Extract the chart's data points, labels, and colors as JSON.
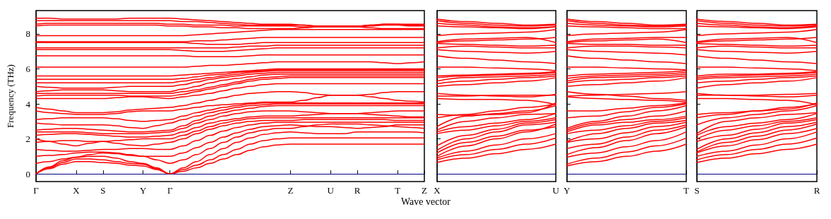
{
  "chart_data": [
    {
      "type": "line",
      "xlabel": "Wave vector",
      "ylabel": "Frequency (THz)",
      "categories": [
        "Γ",
        null,
        null,
        "X",
        null,
        "S",
        null,
        null,
        "Y",
        null,
        "Γ",
        null,
        null,
        null,
        null,
        null,
        null,
        null,
        null,
        "Z",
        null,
        null,
        "U",
        null,
        "R",
        null,
        null,
        "T",
        null,
        "Z"
      ],
      "ylim": [
        -0.44,
        9.33
      ],
      "yticks": [
        0,
        2,
        4,
        6,
        8
      ],
      "grid": false,
      "marker": "none",
      "ref_lines": [
        {
          "axis": "y",
          "value": 0,
          "color": "#0000ff",
          "line_style": "dotted"
        }
      ],
      "series": [
        {
          "color": "#ff0000",
          "values": [
            0,
            0.3,
            0.55,
            0.7,
            0.7,
            0.65,
            0.6,
            0.5,
            0.45,
            0.25,
            0,
            0.15,
            0.35,
            0.6,
            0.85,
            1.1,
            1.35,
            1.55,
            1.65,
            1.7,
            1.7,
            1.7,
            1.7,
            1.7,
            1.7,
            1.7,
            1.7,
            1.7,
            1.7,
            1.7
          ]
        },
        {
          "color": "#ff0000",
          "values": [
            0,
            0.35,
            0.65,
            0.85,
            0.85,
            0.8,
            0.7,
            0.6,
            0.55,
            0.3,
            0,
            0.25,
            0.5,
            0.8,
            1.1,
            1.4,
            1.7,
            1.9,
            2.0,
            2.05,
            2.05,
            2.05,
            2.05,
            2.05,
            2.05,
            2.05,
            2.05,
            2.05,
            2.05,
            2.05
          ]
        },
        {
          "color": "#ff0000",
          "values": [
            0,
            0.4,
            0.75,
            0.95,
            1.0,
            1.0,
            0.9,
            0.7,
            0.6,
            0.35,
            0,
            0.35,
            0.7,
            1.1,
            1.45,
            1.8,
            2.05,
            2.25,
            2.35,
            2.4,
            2.35,
            2.3,
            2.3,
            2.3,
            2.4,
            2.4,
            2.4,
            2.4,
            2.4,
            2.35
          ]
        },
        {
          "color": "#ff0000",
          "values": [
            0.6,
            0.7,
            0.85,
            0.95,
            1.1,
            1.2,
            1.15,
            1.05,
            1.0,
            0.8,
            0.6,
            0.8,
            1.1,
            1.45,
            1.8,
            2.1,
            2.35,
            2.5,
            2.6,
            2.6,
            2.7,
            2.8,
            2.85,
            2.85,
            2.85,
            2.8,
            2.75,
            2.7,
            2.65,
            2.6
          ]
        },
        {
          "color": "#ff0000",
          "values": [
            1.0,
            1.05,
            1.1,
            1.2,
            1.25,
            1.25,
            1.2,
            1.1,
            1.0,
            1.0,
            1.0,
            1.2,
            1.5,
            1.8,
            2.1,
            2.35,
            2.55,
            2.7,
            2.75,
            2.8,
            2.75,
            2.7,
            2.7,
            2.65,
            2.6,
            2.65,
            2.7,
            2.8,
            2.8,
            2.8
          ]
        },
        {
          "color": "#ff0000",
          "values": [
            1.4,
            1.35,
            1.3,
            1.3,
            1.35,
            1.4,
            1.4,
            1.45,
            1.45,
            1.4,
            1.4,
            1.6,
            1.9,
            2.2,
            2.45,
            2.65,
            2.8,
            2.9,
            2.95,
            2.95,
            2.95,
            2.95,
            2.95,
            2.95,
            2.95,
            2.95,
            2.95,
            2.95,
            2.95,
            2.95
          ]
        },
        {
          "color": "#ff0000",
          "values": [
            1.8,
            1.85,
            1.9,
            1.9,
            1.85,
            1.85,
            1.75,
            1.65,
            1.6,
            1.7,
            1.8,
            2.0,
            2.3,
            2.55,
            2.75,
            2.9,
            3.0,
            3.05,
            3.05,
            3.05,
            3.1,
            3.1,
            3.1,
            3.1,
            3.1,
            3.1,
            3.1,
            3.05,
            3.05,
            3.05
          ]
        },
        {
          "color": "#ff0000",
          "values": [
            2.0,
            1.85,
            1.7,
            1.6,
            1.75,
            1.85,
            1.9,
            1.95,
            2.0,
            2.0,
            2.0,
            2.2,
            2.45,
            2.7,
            2.9,
            3.05,
            3.15,
            3.2,
            3.2,
            3.2,
            3.2,
            3.2,
            3.2,
            3.2,
            3.2,
            3.2,
            3.2,
            3.2,
            3.2,
            3.2
          ]
        },
        {
          "color": "#ff0000",
          "values": [
            2.2,
            2.25,
            2.3,
            2.3,
            2.25,
            2.2,
            2.15,
            2.1,
            2.1,
            2.15,
            2.2,
            2.4,
            2.65,
            2.9,
            3.05,
            3.15,
            3.25,
            3.3,
            3.3,
            3.3,
            3.35,
            3.4,
            3.45,
            3.45,
            3.45,
            3.4,
            3.35,
            3.3,
            3.25,
            3.25
          ]
        },
        {
          "color": "#ff0000",
          "values": [
            2.4,
            2.4,
            2.4,
            2.4,
            2.35,
            2.3,
            2.3,
            2.3,
            2.3,
            2.35,
            2.4,
            2.6,
            2.9,
            3.1,
            3.3,
            3.45,
            3.55,
            3.6,
            3.6,
            3.6,
            3.55,
            3.5,
            3.45,
            3.45,
            3.45,
            3.5,
            3.55,
            3.6,
            3.6,
            3.6
          ]
        },
        {
          "color": "#ff0000",
          "values": [
            2.5,
            2.55,
            2.6,
            2.6,
            2.55,
            2.5,
            2.45,
            2.4,
            2.4,
            2.45,
            2.5,
            2.75,
            3.05,
            3.3,
            3.5,
            3.65,
            3.75,
            3.85,
            3.9,
            3.9,
            3.9,
            3.9,
            3.9,
            3.9,
            3.9,
            3.9,
            3.9,
            3.9,
            3.9,
            3.9
          ]
        },
        {
          "color": "#ff0000",
          "values": [
            2.9,
            2.85,
            2.8,
            2.8,
            2.8,
            2.8,
            2.75,
            2.65,
            2.6,
            2.75,
            2.9,
            3.1,
            3.3,
            3.5,
            3.65,
            3.8,
            3.9,
            3.95,
            4.0,
            4.0,
            4.0,
            4.0,
            4.0,
            4.0,
            4.0,
            4.0,
            4.0,
            4.0,
            4.0,
            4.0
          ]
        },
        {
          "color": "#ff0000",
          "values": [
            3.1,
            3.15,
            3.2,
            3.2,
            3.2,
            3.2,
            3.15,
            3.05,
            3.0,
            3.05,
            3.1,
            3.3,
            3.5,
            3.65,
            3.8,
            3.9,
            4.0,
            4.05,
            4.05,
            4.05,
            4.05,
            4.05,
            4.05,
            4.05,
            4.05,
            4.05,
            4.05,
            4.05,
            4.05,
            4.05
          ]
        },
        {
          "color": "#ff0000",
          "values": [
            3.6,
            3.5,
            3.45,
            3.4,
            3.4,
            3.4,
            3.45,
            3.55,
            3.6,
            3.6,
            3.6,
            3.7,
            3.8,
            3.9,
            3.95,
            4.0,
            4.05,
            4.1,
            4.1,
            4.1,
            4.2,
            4.35,
            4.5,
            4.5,
            4.5,
            4.4,
            4.3,
            4.2,
            4.15,
            4.1
          ]
        },
        {
          "color": "#ff0000",
          "values": [
            3.8,
            3.7,
            3.6,
            3.5,
            3.5,
            3.5,
            3.55,
            3.65,
            3.7,
            3.75,
            3.8,
            3.9,
            4.05,
            4.2,
            4.35,
            4.5,
            4.6,
            4.65,
            4.7,
            4.7,
            4.65,
            4.55,
            4.5,
            4.5,
            4.5,
            4.55,
            4.65,
            4.7,
            4.7,
            4.7
          ]
        },
        {
          "color": "#ff0000",
          "values": [
            4.3,
            4.3,
            4.3,
            4.3,
            4.3,
            4.3,
            4.35,
            4.4,
            4.4,
            4.35,
            4.3,
            4.4,
            4.5,
            4.6,
            4.75,
            4.9,
            5.0,
            5.1,
            5.15,
            5.15,
            5.15,
            5.15,
            5.15,
            5.15,
            5.15,
            5.15,
            5.15,
            5.15,
            5.15,
            5.15
          ]
        },
        {
          "color": "#ff0000",
          "values": [
            4.45,
            4.5,
            4.5,
            4.5,
            4.5,
            4.5,
            4.5,
            4.45,
            4.45,
            4.45,
            4.45,
            4.55,
            4.7,
            4.85,
            5.0,
            5.15,
            5.3,
            5.4,
            5.45,
            5.5,
            5.5,
            5.5,
            5.5,
            5.5,
            5.5,
            5.5,
            5.5,
            5.5,
            5.5,
            5.5
          ]
        },
        {
          "color": "#ff0000",
          "values": [
            4.6,
            4.6,
            4.6,
            4.6,
            4.6,
            4.6,
            4.6,
            4.6,
            4.6,
            4.6,
            4.6,
            4.7,
            4.8,
            4.95,
            5.1,
            5.25,
            5.4,
            5.5,
            5.55,
            5.6,
            5.6,
            5.6,
            5.6,
            5.6,
            5.6,
            5.6,
            5.6,
            5.6,
            5.6,
            5.6
          ]
        },
        {
          "color": "#ff0000",
          "values": [
            4.7,
            4.75,
            4.8,
            4.8,
            4.8,
            4.8,
            4.75,
            4.7,
            4.7,
            4.7,
            4.7,
            4.85,
            5.0,
            5.2,
            5.35,
            5.45,
            5.55,
            5.65,
            5.7,
            5.7,
            5.7,
            5.7,
            5.7,
            5.7,
            5.7,
            5.7,
            5.7,
            5.7,
            5.7,
            5.7
          ]
        },
        {
          "color": "#ff0000",
          "values": [
            5.0,
            4.95,
            4.9,
            4.9,
            4.9,
            4.9,
            4.95,
            5.0,
            5.0,
            5.0,
            5.0,
            5.1,
            5.25,
            5.4,
            5.5,
            5.6,
            5.7,
            5.75,
            5.8,
            5.8,
            5.8,
            5.8,
            5.8,
            5.8,
            5.8,
            5.8,
            5.8,
            5.8,
            5.8,
            5.8
          ]
        },
        {
          "color": "#ff0000",
          "values": [
            5.2,
            5.2,
            5.2,
            5.2,
            5.2,
            5.2,
            5.2,
            5.2,
            5.2,
            5.2,
            5.2,
            5.3,
            5.4,
            5.5,
            5.6,
            5.7,
            5.8,
            5.85,
            5.9,
            5.9,
            5.9,
            5.9,
            5.9,
            5.9,
            5.9,
            5.9,
            5.9,
            5.9,
            5.9,
            5.9
          ]
        },
        {
          "color": "#ff0000",
          "values": [
            5.4,
            5.4,
            5.4,
            5.4,
            5.4,
            5.4,
            5.4,
            5.4,
            5.4,
            5.4,
            5.4,
            5.45,
            5.55,
            5.65,
            5.7,
            5.8,
            5.85,
            5.9,
            5.95,
            5.95,
            5.95,
            5.95,
            5.95,
            5.95,
            5.95,
            5.95,
            5.95,
            5.95,
            5.95,
            5.95
          ]
        },
        {
          "color": "#ff0000",
          "values": [
            5.6,
            5.6,
            5.6,
            5.6,
            5.6,
            5.6,
            5.6,
            5.6,
            5.6,
            5.6,
            5.6,
            5.65,
            5.7,
            5.75,
            5.8,
            5.85,
            5.9,
            5.95,
            6.0,
            6.0,
            6.0,
            6.0,
            6.0,
            6.0,
            6.0,
            6.0,
            6.0,
            6.0,
            6.0,
            6.0
          ]
        },
        {
          "color": "#ff0000",
          "values": [
            6.1,
            6.1,
            6.1,
            6.1,
            6.1,
            6.1,
            6.1,
            6.1,
            6.1,
            6.1,
            6.1,
            6.1,
            6.15,
            6.2,
            6.2,
            6.25,
            6.3,
            6.35,
            6.4,
            6.4,
            6.4,
            6.4,
            6.4,
            6.4,
            6.4,
            6.4,
            6.35,
            6.3,
            6.35,
            6.4
          ]
        },
        {
          "color": "#ff0000",
          "values": [
            6.75,
            6.75,
            6.75,
            6.75,
            6.75,
            6.75,
            6.75,
            6.75,
            6.75,
            6.75,
            6.75,
            6.75,
            6.7,
            6.7,
            6.7,
            6.7,
            6.75,
            6.8,
            6.8,
            6.8,
            6.8,
            6.8,
            6.8,
            6.8,
            6.8,
            6.8,
            6.8,
            6.8,
            6.8,
            6.8
          ]
        },
        {
          "color": "#ff0000",
          "values": [
            7.1,
            7.1,
            7.1,
            7.1,
            7.1,
            7.1,
            7.1,
            7.1,
            7.1,
            7.1,
            7.1,
            7.05,
            7.0,
            7.0,
            7.0,
            7.05,
            7.1,
            7.15,
            7.2,
            7.2,
            7.2,
            7.2,
            7.2,
            7.2,
            7.2,
            7.2,
            7.2,
            7.2,
            7.2,
            7.2
          ]
        },
        {
          "color": "#ff0000",
          "values": [
            7.2,
            7.2,
            7.2,
            7.2,
            7.2,
            7.2,
            7.2,
            7.2,
            7.2,
            7.2,
            7.2,
            7.2,
            7.2,
            7.2,
            7.2,
            7.25,
            7.3,
            7.3,
            7.35,
            7.35,
            7.35,
            7.35,
            7.35,
            7.35,
            7.35,
            7.35,
            7.35,
            7.35,
            7.35,
            7.35
          ]
        },
        {
          "color": "#ff0000",
          "values": [
            7.5,
            7.5,
            7.5,
            7.5,
            7.5,
            7.5,
            7.5,
            7.5,
            7.5,
            7.5,
            7.5,
            7.5,
            7.45,
            7.4,
            7.4,
            7.4,
            7.45,
            7.5,
            7.5,
            7.5,
            7.5,
            7.5,
            7.5,
            7.5,
            7.5,
            7.5,
            7.5,
            7.5,
            7.5,
            7.5
          ]
        },
        {
          "color": "#ff0000",
          "values": [
            7.55,
            7.55,
            7.55,
            7.55,
            7.55,
            7.55,
            7.55,
            7.55,
            7.55,
            7.55,
            7.55,
            7.55,
            7.6,
            7.6,
            7.65,
            7.7,
            7.75,
            7.8,
            7.8,
            7.8,
            7.8,
            7.8,
            7.8,
            7.8,
            7.8,
            7.8,
            7.8,
            7.8,
            7.8,
            7.8
          ]
        },
        {
          "color": "#ff0000",
          "values": [
            7.9,
            7.9,
            7.9,
            7.9,
            7.9,
            7.9,
            7.9,
            7.9,
            7.9,
            7.9,
            7.9,
            7.9,
            7.95,
            8.0,
            8.05,
            8.1,
            8.15,
            8.2,
            8.25,
            8.25,
            8.25,
            8.25,
            8.25,
            8.25,
            8.25,
            8.25,
            8.25,
            8.25,
            8.25,
            8.25
          ]
        },
        {
          "color": "#ff0000",
          "values": [
            8.45,
            8.5,
            8.5,
            8.5,
            8.5,
            8.5,
            8.5,
            8.5,
            8.5,
            8.5,
            8.45,
            8.45,
            8.4,
            8.4,
            8.35,
            8.35,
            8.3,
            8.3,
            8.3,
            8.3,
            8.35,
            8.4,
            8.4,
            8.4,
            8.4,
            8.35,
            8.3,
            8.3,
            8.3,
            8.3
          ]
        },
        {
          "color": "#ff0000",
          "values": [
            8.55,
            8.6,
            8.6,
            8.6,
            8.6,
            8.6,
            8.6,
            8.6,
            8.6,
            8.6,
            8.55,
            8.55,
            8.5,
            8.5,
            8.5,
            8.45,
            8.45,
            8.45,
            8.45,
            8.45,
            8.4,
            8.4,
            8.4,
            8.4,
            8.4,
            8.45,
            8.5,
            8.5,
            8.45,
            8.45
          ]
        },
        {
          "color": "#ff0000",
          "values": [
            8.75,
            8.75,
            8.75,
            8.75,
            8.75,
            8.75,
            8.75,
            8.75,
            8.75,
            8.75,
            8.75,
            8.7,
            8.7,
            8.65,
            8.6,
            8.55,
            8.5,
            8.5,
            8.5,
            8.5,
            8.5,
            8.45,
            8.45,
            8.45,
            8.45,
            8.5,
            8.55,
            8.55,
            8.5,
            8.5
          ]
        },
        {
          "color": "#ff0000",
          "values": [
            8.9,
            8.9,
            8.85,
            8.85,
            8.85,
            8.85,
            8.85,
            8.9,
            8.9,
            8.9,
            8.9,
            8.85,
            8.8,
            8.75,
            8.7,
            8.65,
            8.6,
            8.55,
            8.55,
            8.55,
            8.5,
            8.45,
            8.45,
            8.45,
            8.45,
            8.5,
            8.55,
            8.55,
            8.55,
            8.55
          ]
        }
      ]
    },
    {
      "type": "line",
      "categories": [
        "X",
        null,
        null,
        null,
        "U"
      ],
      "ylim": [
        -0.44,
        9.33
      ],
      "yticks": [
        0,
        2,
        4,
        6,
        8
      ],
      "tick_labels": "x",
      "grid": false,
      "marker": "none",
      "ref_lines": [
        {
          "axis": "y",
          "value": 0,
          "color": "#0000ff",
          "line_style": "dotted"
        }
      ],
      "series": [
        {
          "color": "#ff0000",
          "values": [
            0.65,
            0.9,
            1.15,
            1.4,
            1.7
          ]
        },
        {
          "color": "#ff0000",
          "values": [
            0.8,
            1.1,
            1.4,
            1.7,
            2.05
          ]
        },
        {
          "color": "#ff0000",
          "values": [
            0.9,
            1.3,
            1.65,
            2.0,
            2.3
          ]
        },
        {
          "color": "#ff0000",
          "values": [
            1.0,
            1.6,
            2.0,
            2.4,
            2.85
          ]
        },
        {
          "color": "#ff0000",
          "values": [
            1.2,
            1.8,
            2.15,
            2.5,
            2.7
          ]
        },
        {
          "color": "#ff0000",
          "values": [
            1.35,
            2.0,
            2.4,
            2.8,
            2.95
          ]
        },
        {
          "color": "#ff0000",
          "values": [
            1.6,
            2.2,
            2.55,
            2.9,
            3.1
          ]
        },
        {
          "color": "#ff0000",
          "values": [
            2.3,
            2.5,
            2.75,
            3.0,
            3.2
          ]
        },
        {
          "color": "#ff0000",
          "values": [
            2.4,
            2.7,
            2.9,
            3.1,
            3.45
          ]
        },
        {
          "color": "#ff0000",
          "values": [
            2.5,
            3.0,
            3.2,
            3.4,
            3.45
          ]
        },
        {
          "color": "#ff0000",
          "values": [
            2.7,
            3.3,
            3.45,
            3.6,
            3.9
          ]
        },
        {
          "color": "#ff0000",
          "values": [
            3.2,
            3.4,
            3.6,
            3.8,
            4.0
          ]
        },
        {
          "color": "#ff0000",
          "values": [
            3.4,
            3.35,
            3.4,
            3.5,
            4.05
          ]
        },
        {
          "color": "#ff0000",
          "values": [
            4.3,
            4.25,
            4.25,
            4.2,
            3.95
          ]
        },
        {
          "color": "#ff0000",
          "values": [
            4.45,
            4.45,
            4.5,
            4.5,
            4.5
          ]
        },
        {
          "color": "#ff0000",
          "values": [
            4.6,
            4.5,
            4.45,
            4.4,
            4.55
          ]
        },
        {
          "color": "#ff0000",
          "values": [
            5.0,
            5.1,
            5.2,
            5.3,
            5.5
          ]
        },
        {
          "color": "#ff0000",
          "values": [
            5.15,
            5.3,
            5.4,
            5.5,
            5.6
          ]
        },
        {
          "color": "#ff0000",
          "values": [
            5.3,
            5.5,
            5.55,
            5.6,
            5.7
          ]
        },
        {
          "color": "#ff0000",
          "values": [
            5.5,
            5.6,
            5.65,
            5.7,
            5.8
          ]
        },
        {
          "color": "#ff0000",
          "values": [
            5.6,
            5.65,
            5.7,
            5.75,
            5.85
          ]
        },
        {
          "color": "#ff0000",
          "values": [
            6.1,
            6.1,
            6.05,
            6.0,
            5.9
          ]
        },
        {
          "color": "#ff0000",
          "values": [
            6.75,
            6.6,
            6.5,
            6.4,
            6.3
          ]
        },
        {
          "color": "#ff0000",
          "values": [
            7.1,
            7.0,
            6.95,
            6.9,
            7.0
          ]
        },
        {
          "color": "#ff0000",
          "values": [
            7.2,
            7.3,
            7.25,
            7.2,
            7.2
          ]
        },
        {
          "color": "#ff0000",
          "values": [
            7.45,
            7.4,
            7.35,
            7.3,
            7.35
          ]
        },
        {
          "color": "#ff0000",
          "values": [
            7.5,
            7.6,
            7.65,
            7.7,
            7.8
          ]
        },
        {
          "color": "#ff0000",
          "values": [
            7.55,
            7.7,
            7.75,
            7.8,
            7.5
          ]
        },
        {
          "color": "#ff0000",
          "values": [
            7.9,
            8.0,
            8.05,
            8.1,
            8.25
          ]
        },
        {
          "color": "#ff0000",
          "values": [
            8.45,
            8.4,
            8.35,
            8.3,
            8.4
          ]
        },
        {
          "color": "#ff0000",
          "values": [
            8.6,
            8.5,
            8.4,
            8.35,
            8.4
          ]
        },
        {
          "color": "#ff0000",
          "values": [
            8.75,
            8.6,
            8.5,
            8.45,
            8.5
          ]
        },
        {
          "color": "#ff0000",
          "values": [
            8.85,
            8.7,
            8.6,
            8.5,
            8.55
          ]
        }
      ]
    },
    {
      "type": "line",
      "categories": [
        "Y",
        null,
        null,
        null,
        "T"
      ],
      "ylim": [
        -0.44,
        9.33
      ],
      "yticks": [
        0,
        2,
        4,
        6,
        8
      ],
      "tick_labels": "x",
      "grid": false,
      "marker": "none",
      "ref_lines": [
        {
          "axis": "y",
          "value": 0,
          "color": "#0000ff",
          "line_style": "dotted"
        }
      ],
      "series": [
        {
          "color": "#ff0000",
          "values": [
            0.45,
            0.7,
            1.0,
            1.3,
            1.7
          ]
        },
        {
          "color": "#ff0000",
          "values": [
            0.55,
            0.9,
            1.25,
            1.6,
            2.05
          ]
        },
        {
          "color": "#ff0000",
          "values": [
            0.95,
            1.2,
            1.55,
            1.9,
            2.4
          ]
        },
        {
          "color": "#ff0000",
          "values": [
            1.1,
            1.5,
            1.9,
            2.3,
            2.7
          ]
        },
        {
          "color": "#ff0000",
          "values": [
            1.45,
            1.7,
            2.1,
            2.5,
            2.8
          ]
        },
        {
          "color": "#ff0000",
          "values": [
            1.8,
            2.0,
            2.35,
            2.7,
            2.95
          ]
        },
        {
          "color": "#ff0000",
          "values": [
            1.85,
            2.3,
            2.6,
            2.9,
            3.05
          ]
        },
        {
          "color": "#ff0000",
          "values": [
            2.3,
            2.5,
            2.75,
            3.0,
            3.2
          ]
        },
        {
          "color": "#ff0000",
          "values": [
            2.4,
            2.8,
            2.95,
            3.1,
            3.3
          ]
        },
        {
          "color": "#ff0000",
          "values": [
            2.5,
            2.9,
            3.1,
            3.3,
            3.6
          ]
        },
        {
          "color": "#ff0000",
          "values": [
            2.6,
            3.0,
            3.3,
            3.6,
            3.9
          ]
        },
        {
          "color": "#ff0000",
          "values": [
            3.2,
            3.3,
            3.55,
            3.8,
            4.0
          ]
        },
        {
          "color": "#ff0000",
          "values": [
            3.6,
            3.6,
            3.75,
            3.9,
            4.05
          ]
        },
        {
          "color": "#ff0000",
          "values": [
            4.4,
            4.3,
            4.25,
            4.2,
            4.1
          ]
        },
        {
          "color": "#ff0000",
          "values": [
            4.45,
            4.5,
            4.55,
            4.6,
            4.7
          ]
        },
        {
          "color": "#ff0000",
          "values": [
            4.7,
            4.55,
            4.45,
            4.3,
            4.2
          ]
        },
        {
          "color": "#ff0000",
          "values": [
            5.0,
            5.1,
            5.2,
            5.3,
            5.5
          ]
        },
        {
          "color": "#ff0000",
          "values": [
            5.2,
            5.35,
            5.4,
            5.5,
            5.6
          ]
        },
        {
          "color": "#ff0000",
          "values": [
            5.3,
            5.5,
            5.55,
            5.6,
            5.7
          ]
        },
        {
          "color": "#ff0000",
          "values": [
            5.45,
            5.6,
            5.65,
            5.7,
            5.8
          ]
        },
        {
          "color": "#ff0000",
          "values": [
            5.6,
            5.7,
            5.75,
            5.8,
            5.9
          ]
        },
        {
          "color": "#ff0000",
          "values": [
            6.1,
            6.1,
            6.05,
            6.0,
            5.95
          ]
        },
        {
          "color": "#ff0000",
          "values": [
            6.75,
            6.6,
            6.5,
            6.4,
            6.3
          ]
        },
        {
          "color": "#ff0000",
          "values": [
            7.1,
            7.0,
            6.95,
            6.9,
            6.8
          ]
        },
        {
          "color": "#ff0000",
          "values": [
            7.2,
            7.3,
            7.3,
            7.25,
            7.2
          ]
        },
        {
          "color": "#ff0000",
          "values": [
            7.45,
            7.4,
            7.4,
            7.35,
            7.35
          ]
        },
        {
          "color": "#ff0000",
          "values": [
            7.5,
            7.6,
            7.65,
            7.7,
            7.5
          ]
        },
        {
          "color": "#ff0000",
          "values": [
            7.55,
            7.7,
            7.75,
            7.8,
            7.8
          ]
        },
        {
          "color": "#ff0000",
          "values": [
            7.9,
            8.0,
            8.05,
            8.1,
            8.25
          ]
        },
        {
          "color": "#ff0000",
          "values": [
            8.45,
            8.4,
            8.35,
            8.3,
            8.3
          ]
        },
        {
          "color": "#ff0000",
          "values": [
            8.6,
            8.5,
            8.45,
            8.4,
            8.45
          ]
        },
        {
          "color": "#ff0000",
          "values": [
            8.75,
            8.6,
            8.5,
            8.45,
            8.5
          ]
        },
        {
          "color": "#ff0000",
          "values": [
            8.85,
            8.7,
            8.6,
            8.5,
            8.55
          ]
        }
      ]
    },
    {
      "type": "line",
      "categories": [
        "S",
        null,
        null,
        null,
        "R"
      ],
      "ylim": [
        -0.44,
        9.33
      ],
      "yticks": [
        0,
        2,
        4,
        6,
        8
      ],
      "tick_labels": "x",
      "grid": false,
      "marker": "none",
      "ref_lines": [
        {
          "axis": "y",
          "value": 0,
          "color": "#0000ff",
          "line_style": "dotted"
        }
      ],
      "series": [
        {
          "color": "#ff0000",
          "values": [
            0.65,
            0.9,
            1.15,
            1.4,
            1.7
          ]
        },
        {
          "color": "#ff0000",
          "values": [
            0.8,
            1.1,
            1.4,
            1.7,
            2.05
          ]
        },
        {
          "color": "#ff0000",
          "values": [
            1.0,
            1.3,
            1.65,
            2.0,
            2.4
          ]
        },
        {
          "color": "#ff0000",
          "values": [
            1.2,
            1.6,
            1.95,
            2.3,
            2.6
          ]
        },
        {
          "color": "#ff0000",
          "values": [
            1.25,
            1.8,
            2.15,
            2.5,
            2.85
          ]
        },
        {
          "color": "#ff0000",
          "values": [
            1.4,
            2.0,
            2.35,
            2.7,
            2.95
          ]
        },
        {
          "color": "#ff0000",
          "values": [
            1.85,
            2.2,
            2.55,
            2.9,
            3.1
          ]
        },
        {
          "color": "#ff0000",
          "values": [
            2.0,
            2.5,
            2.75,
            3.0,
            3.2
          ]
        },
        {
          "color": "#ff0000",
          "values": [
            2.2,
            2.7,
            2.9,
            3.1,
            3.45
          ]
        },
        {
          "color": "#ff0000",
          "values": [
            2.3,
            3.0,
            3.2,
            3.4,
            3.5
          ]
        },
        {
          "color": "#ff0000",
          "values": [
            2.8,
            3.2,
            3.4,
            3.6,
            3.9
          ]
        },
        {
          "color": "#ff0000",
          "values": [
            3.2,
            3.4,
            3.6,
            3.8,
            4.0
          ]
        },
        {
          "color": "#ff0000",
          "values": [
            3.4,
            3.5,
            3.6,
            3.7,
            4.05
          ]
        },
        {
          "color": "#ff0000",
          "values": [
            4.3,
            4.3,
            4.25,
            4.2,
            3.95
          ]
        },
        {
          "color": "#ff0000",
          "values": [
            4.5,
            4.5,
            4.5,
            4.55,
            4.6
          ]
        },
        {
          "color": "#ff0000",
          "values": [
            4.6,
            4.5,
            4.45,
            4.4,
            4.5
          ]
        },
        {
          "color": "#ff0000",
          "values": [
            4.9,
            5.1,
            5.2,
            5.3,
            5.5
          ]
        },
        {
          "color": "#ff0000",
          "values": [
            5.2,
            5.3,
            5.4,
            5.5,
            5.6
          ]
        },
        {
          "color": "#ff0000",
          "values": [
            5.4,
            5.5,
            5.55,
            5.6,
            5.7
          ]
        },
        {
          "color": "#ff0000",
          "values": [
            5.5,
            5.6,
            5.65,
            5.7,
            5.8
          ]
        },
        {
          "color": "#ff0000",
          "values": [
            5.6,
            5.7,
            5.7,
            5.75,
            5.85
          ]
        },
        {
          "color": "#ff0000",
          "values": [
            6.1,
            6.1,
            6.05,
            6.0,
            5.9
          ]
        },
        {
          "color": "#ff0000",
          "values": [
            6.75,
            6.6,
            6.5,
            6.4,
            6.3
          ]
        },
        {
          "color": "#ff0000",
          "values": [
            7.1,
            7.0,
            6.95,
            6.9,
            7.0
          ]
        },
        {
          "color": "#ff0000",
          "values": [
            7.2,
            7.3,
            7.25,
            7.2,
            7.2
          ]
        },
        {
          "color": "#ff0000",
          "values": [
            7.45,
            7.4,
            7.35,
            7.3,
            7.35
          ]
        },
        {
          "color": "#ff0000",
          "values": [
            7.5,
            7.6,
            7.65,
            7.7,
            7.8
          ]
        },
        {
          "color": "#ff0000",
          "values": [
            7.55,
            7.7,
            7.75,
            7.8,
            7.5
          ]
        },
        {
          "color": "#ff0000",
          "values": [
            7.9,
            8.0,
            8.05,
            8.1,
            8.25
          ]
        },
        {
          "color": "#ff0000",
          "values": [
            8.45,
            8.4,
            8.35,
            8.3,
            8.4
          ]
        },
        {
          "color": "#ff0000",
          "values": [
            8.6,
            8.5,
            8.4,
            8.35,
            8.45
          ]
        },
        {
          "color": "#ff0000",
          "values": [
            8.75,
            8.6,
            8.5,
            8.45,
            8.5
          ]
        },
        {
          "color": "#ff0000",
          "values": [
            8.85,
            8.7,
            8.6,
            8.5,
            8.55
          ]
        }
      ]
    }
  ]
}
